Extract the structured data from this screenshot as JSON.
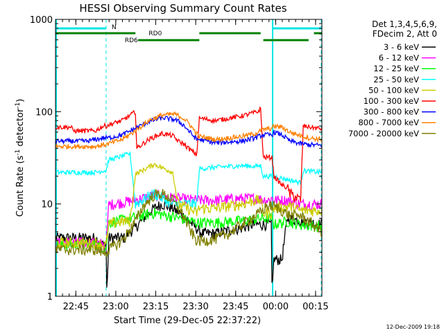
{
  "chart_data": {
    "type": "line",
    "title": "HESSI Observing Summary Count Rates",
    "xlabel": "Start Time (29-Dec-05 22:37:22)",
    "ylabel_main": "Count Rate (s",
    "ylabel_sup1": "-1",
    "ylabel_mid": " detector",
    "ylabel_sup2": "-1",
    "ylabel_end": ")",
    "y_scale": "log",
    "ylim": [
      1,
      1000
    ],
    "y_ticks": [
      {
        "value": 1,
        "label": "1"
      },
      {
        "value": 10,
        "label": "10"
      },
      {
        "value": 100,
        "label": "100"
      },
      {
        "value": 1000,
        "label": "1000"
      }
    ],
    "x_unit": "minutes after 22:37:22",
    "xlim": [
      0,
      100
    ],
    "x_ticks": [
      {
        "value": 7.63,
        "label": "22:45"
      },
      {
        "value": 22.63,
        "label": "23:00"
      },
      {
        "value": 37.63,
        "label": "23:15"
      },
      {
        "value": 52.63,
        "label": "23:30"
      },
      {
        "value": 67.63,
        "label": "23:45"
      },
      {
        "value": 82.63,
        "label": "00:00"
      },
      {
        "value": 97.63,
        "label": "00:15"
      }
    ],
    "legend_header_1": "Det 1,3,4,5,6,9,",
    "legend_header_2": "FDecim 2, Att 0",
    "legend_position": "right, outside plot",
    "footer_timestamp": "12-Dec-2009 19:18",
    "night_intervals": [
      [
        19,
        81.5
      ]
    ],
    "night_label": "N",
    "night_color": "#00e5e5",
    "saa_bars": [
      [
        0,
        30
      ],
      [
        54,
        77
      ],
      [
        97,
        100
      ]
    ],
    "saa_label": "RD0",
    "saa_label_x": 35,
    "rd6_bars": [
      [
        31,
        54
      ],
      [
        78,
        95
      ]
    ],
    "rd6_label": "RD6",
    "rd6_label_x": 26,
    "attenuator_color": "#008000",
    "series": [
      {
        "name": "3 - 6 keV",
        "color": "#000000",
        "x": [
          0,
          15,
          18,
          19,
          19.3,
          20,
          26,
          28,
          30,
          33,
          37,
          40,
          44,
          49,
          55,
          60,
          65,
          70,
          74,
          80,
          81,
          81.3,
          81.8,
          82.5,
          85,
          87,
          100
        ],
        "y": [
          4.3,
          4.3,
          3.6,
          3.6,
          1,
          4.3,
          4.3,
          5,
          5.5,
          7,
          9,
          10,
          9,
          7,
          4.8,
          4.8,
          5.2,
          5.5,
          6,
          6,
          6,
          1,
          2.4,
          2.5,
          2.5,
          7,
          6
        ]
      },
      {
        "name": "6 - 12 keV",
        "color": "#ff00ff",
        "x": [
          0,
          15,
          18,
          19,
          20,
          30,
          37,
          45,
          53,
          60,
          70,
          75,
          80,
          81.3,
          82,
          87,
          92,
          100
        ],
        "y": [
          3.8,
          3.8,
          3.6,
          3.5,
          9.8,
          11,
          12.5,
          11.5,
          11,
          11,
          11.5,
          11.5,
          11,
          11.5,
          11,
          11,
          10,
          10
        ]
      },
      {
        "name": "12 - 25 keV",
        "color": "#00ff00",
        "x": [
          0,
          15,
          18,
          19,
          20,
          30,
          37,
          45,
          53,
          60,
          70,
          78,
          81.3,
          82,
          87,
          92,
          100
        ],
        "y": [
          3.6,
          3.6,
          3.4,
          3.3,
          6.3,
          7.2,
          8,
          7.2,
          6.3,
          6.3,
          6.6,
          7,
          7,
          6,
          6.5,
          6,
          5.7
        ]
      },
      {
        "name": "25 - 50 keV",
        "color": "#00ffff",
        "x": [
          0,
          15,
          18,
          19,
          20,
          25,
          28,
          30,
          37,
          44,
          46,
          53,
          54,
          60,
          70,
          75,
          77,
          78,
          81.3,
          82,
          92,
          93,
          100
        ],
        "y": [
          22,
          22,
          23,
          23,
          30,
          33,
          35,
          10,
          13,
          10,
          10,
          10,
          24,
          25,
          26,
          25.5,
          26,
          20,
          20,
          20,
          17,
          23,
          22
        ]
      },
      {
        "name": "50 - 100 keV",
        "color": "#cccc00",
        "x": [
          0,
          15,
          18,
          19,
          20,
          25,
          28,
          30,
          37,
          44,
          46,
          53,
          54,
          60,
          70,
          75,
          77,
          78,
          81.3,
          82,
          88,
          92,
          100
        ],
        "y": [
          3.8,
          3.8,
          3.6,
          3.6,
          6,
          6.5,
          6.5,
          21,
          27,
          22,
          10,
          8,
          9,
          9,
          10,
          11,
          11,
          8,
          8,
          9,
          9.5,
          8.5,
          8.5
        ]
      },
      {
        "name": "100 - 300 keV",
        "color": "#ff0000",
        "x": [
          0,
          6,
          6.5,
          12,
          15,
          18,
          19,
          20,
          25,
          30,
          30.5,
          35,
          40,
          44,
          46,
          48,
          50,
          53,
          54,
          60,
          70,
          76,
          77,
          78,
          81.3,
          82,
          85,
          87,
          88,
          92,
          93,
          100
        ],
        "y": [
          68,
          68,
          62,
          62,
          62,
          70,
          70,
          72,
          80,
          100,
          40,
          50,
          58,
          55,
          48,
          45,
          40,
          34,
          85,
          80,
          90,
          100,
          108,
          32,
          32,
          20,
          16,
          15,
          13,
          11,
          70,
          65
        ]
      },
      {
        "name": "300 - 800 keV",
        "color": "#0000ff",
        "x": [
          0,
          12,
          15,
          18,
          19,
          20,
          25,
          30,
          35,
          40,
          45,
          48,
          50,
          53,
          54,
          60,
          70,
          75,
          77,
          78,
          81.3,
          82,
          85,
          88,
          92,
          95,
          100
        ],
        "y": [
          48,
          48,
          50,
          52,
          52,
          52,
          56,
          66,
          78,
          86,
          82,
          72,
          62,
          50,
          50,
          46,
          48,
          52,
          55,
          56,
          56,
          60,
          56,
          48,
          45,
          44,
          43
        ]
      },
      {
        "name": "800 - 7000 keV",
        "color": "#ff8000",
        "x": [
          0,
          12,
          15,
          18,
          19,
          20,
          25,
          30,
          35,
          40,
          45,
          48,
          50,
          53,
          54,
          60,
          70,
          75,
          77,
          78,
          81.3,
          82,
          85,
          88,
          92,
          95,
          100
        ],
        "y": [
          42,
          42,
          42,
          44,
          44,
          45,
          50,
          62,
          80,
          92,
          94,
          85,
          75,
          58,
          54,
          50,
          54,
          58,
          62,
          64,
          66,
          70,
          68,
          60,
          55,
          52,
          50
        ]
      },
      {
        "name": "7000 - 20000 keV",
        "color": "#808000",
        "x": [
          0,
          15,
          18,
          19,
          20,
          25,
          30,
          33,
          37,
          40,
          44,
          48,
          50,
          53,
          56,
          60,
          65,
          70,
          75,
          78,
          79,
          81.3,
          82,
          85,
          88,
          92,
          95,
          100
        ],
        "y": [
          3.2,
          3.2,
          3,
          3,
          3.2,
          4,
          6.5,
          9.5,
          12.5,
          13,
          11,
          7.5,
          5.5,
          4,
          4,
          4.2,
          4.8,
          6,
          7.5,
          8.5,
          9.5,
          9.5,
          9.5,
          8.5,
          7.5,
          7.5,
          6.5,
          5
        ]
      }
    ]
  }
}
